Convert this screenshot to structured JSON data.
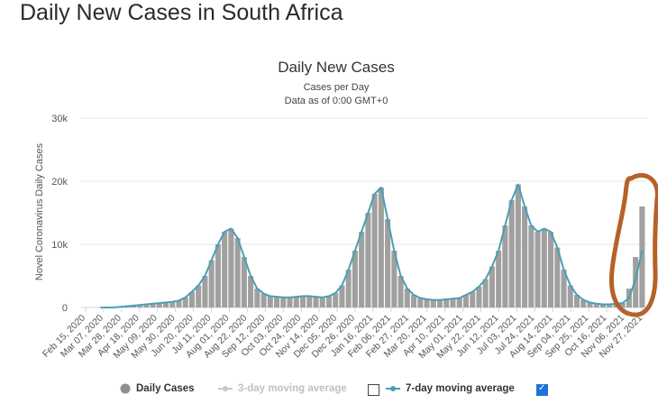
{
  "page": {
    "heading": "Daily New Cases in South Africa"
  },
  "chart_data": {
    "type": "bar",
    "title": "Daily New Cases",
    "subtitle_lines": [
      "Cases per Day",
      "Data as of 0:00 GMT+0"
    ],
    "ylabel": "Novel Coronavirus Daily Cases",
    "xlabel": "",
    "ylim": [
      0,
      30000
    ],
    "y_ticks": [
      0,
      10000,
      20000,
      30000
    ],
    "y_tick_labels": [
      "0",
      "10k",
      "20k",
      "30k"
    ],
    "x_tick_labels": [
      "Feb 15, 2020",
      "Mar 07, 2020",
      "Mar 28, 2020",
      "Apr 18, 2020",
      "May 09, 2020",
      "May 30, 2020",
      "Jun 20, 2020",
      "Jul 11, 2020",
      "Aug 01, 2020",
      "Aug 22, 2020",
      "Sep 12, 2020",
      "Oct 03, 2020",
      "Oct 24, 2020",
      "Nov 14, 2020",
      "Dec 05, 2020",
      "Dec 26, 2020",
      "Jan 16, 2021",
      "Feb 06, 2021",
      "Feb 27, 2021",
      "Mar 20, 2021",
      "Apr 10, 2021",
      "May 01, 2021",
      "May 22, 2021",
      "Jun 12, 2021",
      "Jul 03, 2021",
      "Jul 24, 2021",
      "Aug 14, 2021",
      "Sep 04, 2021",
      "Sep 25, 2021",
      "Oct 16, 2021",
      "Nov 06, 2021",
      "Nov 27, 2021"
    ],
    "grid": true,
    "legend_position": "bottom",
    "bar_color": "#a0a0a0",
    "line_color": "#4a9fb5",
    "weeks_start": "Feb 15, 2020",
    "series": [
      {
        "name": "Daily Cases",
        "values": [
          0,
          0,
          10,
          100,
          200,
          300,
          400,
          500,
          600,
          700,
          800,
          900,
          1100,
          1600,
          2500,
          3500,
          5000,
          7500,
          10000,
          12000,
          12500,
          11000,
          8000,
          5000,
          3000,
          2200,
          1800,
          1700,
          1600,
          1600,
          1700,
          1800,
          1800,
          1700,
          1600,
          1800,
          2300,
          3500,
          6000,
          9000,
          12000,
          15000,
          18000,
          19000,
          14000,
          9000,
          5000,
          3000,
          2000,
          1500,
          1300,
          1200,
          1200,
          1300,
          1400,
          1500,
          2000,
          2500,
          3300,
          4500,
          6500,
          9000,
          13000,
          17000,
          19500,
          16000,
          13000,
          12000,
          12500,
          12000,
          9500,
          6000,
          3500,
          2000,
          1200,
          800,
          600,
          500,
          500,
          600,
          700,
          3000,
          8000,
          16000
        ]
      },
      {
        "name": "7-day moving average",
        "values": [
          0,
          0,
          10,
          100,
          200,
          300,
          400,
          500,
          600,
          700,
          800,
          900,
          1100,
          1600,
          2500,
          3500,
          5000,
          7500,
          10000,
          12000,
          12500,
          11000,
          8000,
          5000,
          3000,
          2200,
          1800,
          1700,
          1600,
          1600,
          1700,
          1800,
          1800,
          1700,
          1600,
          1800,
          2300,
          3500,
          6000,
          9000,
          12000,
          15000,
          18000,
          19000,
          14000,
          9000,
          5000,
          3000,
          2000,
          1500,
          1300,
          1200,
          1200,
          1300,
          1400,
          1500,
          2000,
          2500,
          3300,
          4500,
          6500,
          9000,
          13000,
          17000,
          19500,
          16000,
          13000,
          12000,
          12500,
          12000,
          9500,
          6000,
          3500,
          2000,
          1200,
          800,
          600,
          500,
          500,
          600,
          700,
          1500,
          4500,
          9000
        ]
      }
    ]
  },
  "legend": [
    {
      "label": "Daily Cases",
      "color": "#8f8f8f",
      "checkbox": null
    },
    {
      "label": "3-day moving average",
      "color": "#c8c8c8",
      "checkbox": false
    },
    {
      "label": "7-day moving average",
      "color": "#4a9fb5",
      "checkbox": true
    }
  ],
  "annotation": {
    "shape": "hand-drawn-oval",
    "color": "#b5622a"
  }
}
